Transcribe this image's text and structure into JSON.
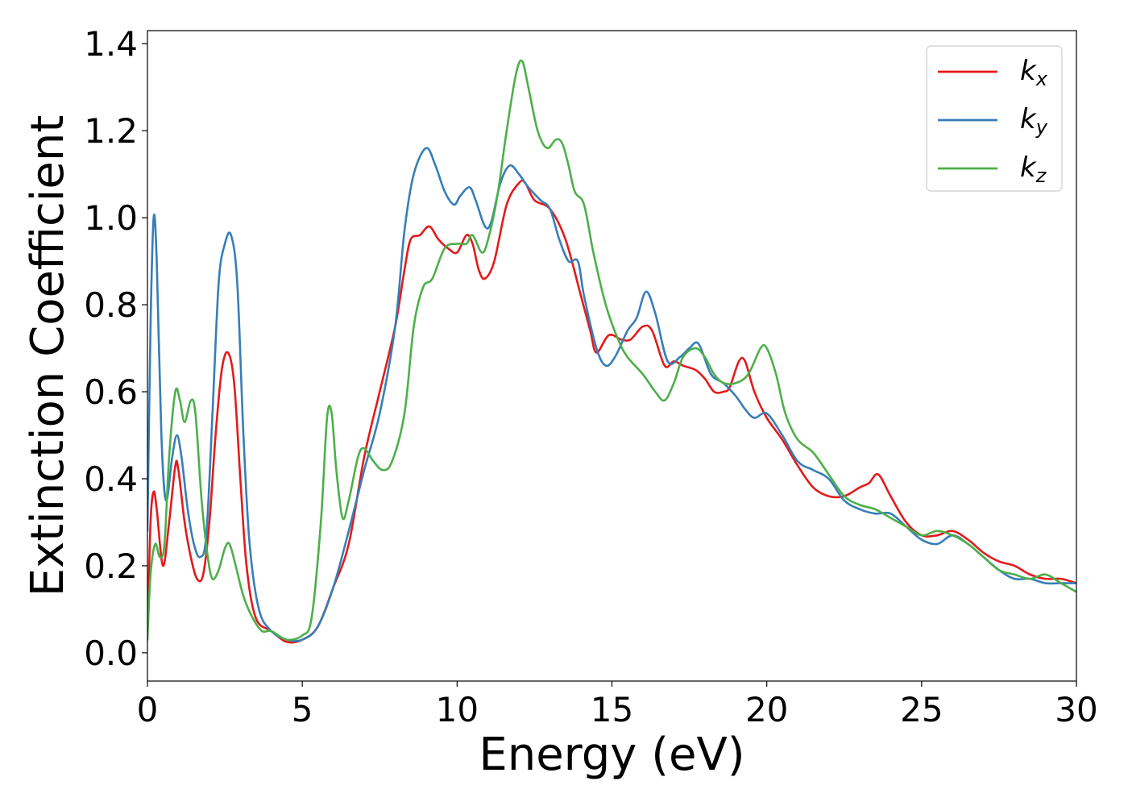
{
  "chart_data": {
    "type": "line",
    "title": "",
    "xlabel": "Energy (eV)",
    "ylabel": "Extinction Coefficient",
    "xlim": [
      0,
      30
    ],
    "ylim": [
      -0.065,
      1.43
    ],
    "xticks": [
      0,
      5,
      10,
      15,
      20,
      25,
      30
    ],
    "yticks": [
      0.0,
      0.2,
      0.4,
      0.6,
      0.8,
      1.0,
      1.2,
      1.4
    ],
    "grid": false,
    "legend_position": "top-right",
    "series": [
      {
        "name": "k",
        "subscript": "x",
        "color": "#e41a1c",
        "points": [
          [
            0.0,
            0.04
          ],
          [
            0.1,
            0.3
          ],
          [
            0.2,
            0.37
          ],
          [
            0.3,
            0.33
          ],
          [
            0.5,
            0.2
          ],
          [
            0.7,
            0.3
          ],
          [
            0.9,
            0.43
          ],
          [
            1.0,
            0.42
          ],
          [
            1.2,
            0.3
          ],
          [
            1.4,
            0.22
          ],
          [
            1.6,
            0.17
          ],
          [
            1.8,
            0.18
          ],
          [
            2.0,
            0.3
          ],
          [
            2.2,
            0.5
          ],
          [
            2.4,
            0.65
          ],
          [
            2.6,
            0.69
          ],
          [
            2.8,
            0.62
          ],
          [
            3.0,
            0.4
          ],
          [
            3.2,
            0.2
          ],
          [
            3.5,
            0.08
          ],
          [
            4.0,
            0.05
          ],
          [
            4.5,
            0.025
          ],
          [
            5.0,
            0.03
          ],
          [
            5.5,
            0.06
          ],
          [
            6.0,
            0.15
          ],
          [
            6.5,
            0.25
          ],
          [
            7.0,
            0.45
          ],
          [
            7.5,
            0.6
          ],
          [
            8.0,
            0.75
          ],
          [
            8.3,
            0.88
          ],
          [
            8.5,
            0.95
          ],
          [
            8.8,
            0.96
          ],
          [
            9.1,
            0.98
          ],
          [
            9.4,
            0.95
          ],
          [
            9.7,
            0.93
          ],
          [
            10.0,
            0.92
          ],
          [
            10.3,
            0.96
          ],
          [
            10.5,
            0.94
          ],
          [
            10.7,
            0.88
          ],
          [
            10.9,
            0.86
          ],
          [
            11.2,
            0.9
          ],
          [
            11.6,
            1.03
          ],
          [
            12.0,
            1.08
          ],
          [
            12.2,
            1.08
          ],
          [
            12.5,
            1.04
          ],
          [
            13.0,
            1.02
          ],
          [
            13.5,
            0.95
          ],
          [
            14.0,
            0.82
          ],
          [
            14.3,
            0.74
          ],
          [
            14.5,
            0.69
          ],
          [
            14.9,
            0.73
          ],
          [
            15.3,
            0.72
          ],
          [
            15.6,
            0.72
          ],
          [
            16.0,
            0.75
          ],
          [
            16.3,
            0.74
          ],
          [
            16.7,
            0.66
          ],
          [
            17.0,
            0.67
          ],
          [
            17.3,
            0.66
          ],
          [
            17.7,
            0.65
          ],
          [
            18.0,
            0.63
          ],
          [
            18.3,
            0.6
          ],
          [
            18.6,
            0.6
          ],
          [
            18.8,
            0.61
          ],
          [
            19.1,
            0.67
          ],
          [
            19.3,
            0.67
          ],
          [
            19.6,
            0.6
          ],
          [
            20.0,
            0.54
          ],
          [
            20.5,
            0.49
          ],
          [
            21.0,
            0.43
          ],
          [
            21.5,
            0.38
          ],
          [
            22.0,
            0.36
          ],
          [
            22.5,
            0.36
          ],
          [
            23.0,
            0.38
          ],
          [
            23.3,
            0.39
          ],
          [
            23.6,
            0.41
          ],
          [
            24.0,
            0.36
          ],
          [
            24.5,
            0.3
          ],
          [
            25.0,
            0.27
          ],
          [
            25.5,
            0.27
          ],
          [
            26.0,
            0.28
          ],
          [
            26.5,
            0.26
          ],
          [
            27.0,
            0.23
          ],
          [
            27.5,
            0.21
          ],
          [
            28.0,
            0.2
          ],
          [
            28.5,
            0.18
          ],
          [
            29.0,
            0.17
          ],
          [
            29.5,
            0.17
          ],
          [
            30.0,
            0.16
          ]
        ]
      },
      {
        "name": "k",
        "subscript": "y",
        "color": "#377eb8",
        "points": [
          [
            0.0,
            0.28
          ],
          [
            0.1,
            0.75
          ],
          [
            0.2,
            1.0
          ],
          [
            0.3,
            0.9
          ],
          [
            0.45,
            0.5
          ],
          [
            0.6,
            0.35
          ],
          [
            0.8,
            0.45
          ],
          [
            0.95,
            0.5
          ],
          [
            1.1,
            0.45
          ],
          [
            1.3,
            0.33
          ],
          [
            1.5,
            0.25
          ],
          [
            1.7,
            0.22
          ],
          [
            1.9,
            0.27
          ],
          [
            2.1,
            0.55
          ],
          [
            2.3,
            0.85
          ],
          [
            2.5,
            0.94
          ],
          [
            2.7,
            0.96
          ],
          [
            2.9,
            0.85
          ],
          [
            3.1,
            0.5
          ],
          [
            3.3,
            0.25
          ],
          [
            3.6,
            0.1
          ],
          [
            4.0,
            0.05
          ],
          [
            4.5,
            0.03
          ],
          [
            5.0,
            0.03
          ],
          [
            5.5,
            0.06
          ],
          [
            6.0,
            0.15
          ],
          [
            6.5,
            0.28
          ],
          [
            7.0,
            0.42
          ],
          [
            7.5,
            0.55
          ],
          [
            8.0,
            0.75
          ],
          [
            8.3,
            0.97
          ],
          [
            8.6,
            1.1
          ],
          [
            9.0,
            1.16
          ],
          [
            9.3,
            1.12
          ],
          [
            9.6,
            1.06
          ],
          [
            9.9,
            1.03
          ],
          [
            10.1,
            1.05
          ],
          [
            10.4,
            1.07
          ],
          [
            10.6,
            1.04
          ],
          [
            10.9,
            0.98
          ],
          [
            11.1,
            0.99
          ],
          [
            11.4,
            1.08
          ],
          [
            11.7,
            1.12
          ],
          [
            12.0,
            1.1
          ],
          [
            12.3,
            1.07
          ],
          [
            12.7,
            1.04
          ],
          [
            13.0,
            1.02
          ],
          [
            13.3,
            0.95
          ],
          [
            13.6,
            0.9
          ],
          [
            13.9,
            0.9
          ],
          [
            14.1,
            0.82
          ],
          [
            14.5,
            0.7
          ],
          [
            14.8,
            0.66
          ],
          [
            15.1,
            0.68
          ],
          [
            15.5,
            0.74
          ],
          [
            15.8,
            0.77
          ],
          [
            16.1,
            0.83
          ],
          [
            16.4,
            0.78
          ],
          [
            16.8,
            0.67
          ],
          [
            17.2,
            0.68
          ],
          [
            17.5,
            0.7
          ],
          [
            17.8,
            0.71
          ],
          [
            18.2,
            0.64
          ],
          [
            18.6,
            0.62
          ],
          [
            19.0,
            0.59
          ],
          [
            19.3,
            0.56
          ],
          [
            19.6,
            0.54
          ],
          [
            20.0,
            0.55
          ],
          [
            20.5,
            0.5
          ],
          [
            21.0,
            0.44
          ],
          [
            21.5,
            0.42
          ],
          [
            22.0,
            0.4
          ],
          [
            22.5,
            0.35
          ],
          [
            23.0,
            0.33
          ],
          [
            23.5,
            0.32
          ],
          [
            24.0,
            0.32
          ],
          [
            24.5,
            0.29
          ],
          [
            25.0,
            0.26
          ],
          [
            25.5,
            0.25
          ],
          [
            26.0,
            0.27
          ],
          [
            26.5,
            0.25
          ],
          [
            27.0,
            0.22
          ],
          [
            27.5,
            0.19
          ],
          [
            28.0,
            0.17
          ],
          [
            28.5,
            0.17
          ],
          [
            29.0,
            0.16
          ],
          [
            29.5,
            0.16
          ],
          [
            30.0,
            0.16
          ]
        ]
      },
      {
        "name": "k",
        "subscript": "z",
        "color": "#4daf4a",
        "points": [
          [
            0.0,
            0.03
          ],
          [
            0.1,
            0.18
          ],
          [
            0.25,
            0.25
          ],
          [
            0.4,
            0.22
          ],
          [
            0.55,
            0.25
          ],
          [
            0.7,
            0.45
          ],
          [
            0.9,
            0.6
          ],
          [
            1.05,
            0.58
          ],
          [
            1.2,
            0.53
          ],
          [
            1.4,
            0.58
          ],
          [
            1.55,
            0.55
          ],
          [
            1.75,
            0.35
          ],
          [
            1.95,
            0.22
          ],
          [
            2.1,
            0.17
          ],
          [
            2.3,
            0.19
          ],
          [
            2.5,
            0.24
          ],
          [
            2.65,
            0.25
          ],
          [
            2.85,
            0.2
          ],
          [
            3.1,
            0.13
          ],
          [
            3.4,
            0.08
          ],
          [
            3.7,
            0.05
          ],
          [
            4.0,
            0.05
          ],
          [
            4.5,
            0.03
          ],
          [
            5.0,
            0.04
          ],
          [
            5.3,
            0.08
          ],
          [
            5.6,
            0.3
          ],
          [
            5.8,
            0.54
          ],
          [
            5.95,
            0.55
          ],
          [
            6.1,
            0.42
          ],
          [
            6.3,
            0.31
          ],
          [
            6.5,
            0.35
          ],
          [
            6.8,
            0.45
          ],
          [
            7.0,
            0.47
          ],
          [
            7.3,
            0.44
          ],
          [
            7.6,
            0.42
          ],
          [
            7.9,
            0.44
          ],
          [
            8.3,
            0.55
          ],
          [
            8.6,
            0.75
          ],
          [
            8.9,
            0.84
          ],
          [
            9.2,
            0.86
          ],
          [
            9.6,
            0.93
          ],
          [
            10.0,
            0.94
          ],
          [
            10.3,
            0.94
          ],
          [
            10.5,
            0.96
          ],
          [
            10.8,
            0.92
          ],
          [
            11.0,
            0.95
          ],
          [
            11.3,
            1.05
          ],
          [
            11.6,
            1.2
          ],
          [
            11.9,
            1.33
          ],
          [
            12.1,
            1.36
          ],
          [
            12.3,
            1.3
          ],
          [
            12.6,
            1.2
          ],
          [
            12.9,
            1.16
          ],
          [
            13.2,
            1.18
          ],
          [
            13.4,
            1.17
          ],
          [
            13.6,
            1.12
          ],
          [
            13.8,
            1.06
          ],
          [
            14.1,
            1.03
          ],
          [
            14.4,
            0.92
          ],
          [
            14.8,
            0.8
          ],
          [
            15.2,
            0.72
          ],
          [
            15.5,
            0.68
          ],
          [
            16.0,
            0.64
          ],
          [
            16.4,
            0.6
          ],
          [
            16.7,
            0.58
          ],
          [
            17.0,
            0.62
          ],
          [
            17.3,
            0.68
          ],
          [
            17.7,
            0.7
          ],
          [
            18.0,
            0.68
          ],
          [
            18.3,
            0.64
          ],
          [
            18.6,
            0.62
          ],
          [
            19.0,
            0.62
          ],
          [
            19.4,
            0.64
          ],
          [
            19.8,
            0.7
          ],
          [
            20.0,
            0.7
          ],
          [
            20.3,
            0.64
          ],
          [
            20.6,
            0.55
          ],
          [
            21.0,
            0.49
          ],
          [
            21.5,
            0.46
          ],
          [
            22.0,
            0.41
          ],
          [
            22.5,
            0.36
          ],
          [
            23.0,
            0.34
          ],
          [
            23.5,
            0.33
          ],
          [
            24.0,
            0.31
          ],
          [
            24.5,
            0.29
          ],
          [
            25.0,
            0.27
          ],
          [
            25.5,
            0.28
          ],
          [
            26.0,
            0.27
          ],
          [
            26.5,
            0.25
          ],
          [
            27.0,
            0.22
          ],
          [
            27.5,
            0.19
          ],
          [
            28.0,
            0.18
          ],
          [
            28.5,
            0.17
          ],
          [
            29.0,
            0.18
          ],
          [
            29.5,
            0.16
          ],
          [
            30.0,
            0.14
          ]
        ]
      }
    ]
  }
}
